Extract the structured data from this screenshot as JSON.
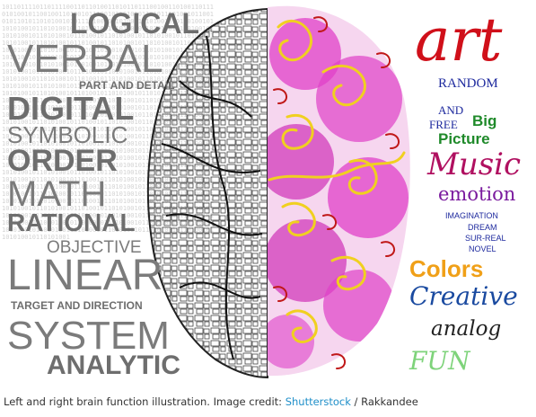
{
  "left_hemisphere": {
    "binary_text": "1011011110110111100110110100110101101110010011010011011101010010110010011010010111001011010101101011101001011001010110101101010010101110100101101001101010010101101001011010100101101010010110100101101010010110101001011010010110101001011010100101101001011010100101101010010110100101101010010110101001011010010110101001011010100101101001011010100101101010010110100101101010010110101001011010010110101001011010100101101001011010100101101010010110100101101010010110101001011010010110101001011010100101101001011010100101101010010110100101101010010110101001011010010110101001011010100101101001011010100101101010010110100101101010010110101001011010010110101001011010100101101001011010100101101010010110100101101010010110101001011010010110101001011010100101101001011010100101101010010110100101101010010110101001011010010110101001011010100101101001011010100101101010010110100101101010010110101001011010010110101001011010100101101001011010100101101010010110100101101010010110101001011010010110101001011010100101101001011010100101101010010110100101101010010110101001011010010110101001011010100101101001011010100101101010010110100101101010010110101001011010010110101001011010100101101001011010100101101010010110100101101010010110101001011010010110101001011010100101101001011010100101101010010110100101101010010110101001011010010110101001011010100101101001011010100101101010010110100101101010010110101001011010010110101001011010100101101001011010100101101010010110100101101010010110101001011010010110101001011010100101101001011010100101101010010110100101101010010110101001011010010110101001011010100101101001011010100101101010010110100101101010010110101001011010010110101001011010100101101001011010100101101010010110100101101010010110101001011010010110101001011010100101101001011010100101101010010110100101101010010110101001",
    "words": {
      "logical": "LOGICAL",
      "verbal": "VERBAL",
      "part_and_detail": "PART AND DETAIL",
      "digital": "DIGITAL",
      "symbolic": "SYMBOLIC",
      "order": "ORDER",
      "math": "MATH",
      "rational": "RATIONAL",
      "objective": "OBJECTIVE",
      "linear": "LINEAR",
      "target_and_direction": "TARGET AND DIRECTION",
      "system": "SYSTEM",
      "analytic": "ANALYTIC"
    }
  },
  "right_hemisphere": {
    "words": {
      "art": "art",
      "random": "RANDOM",
      "and": "AND",
      "free": "FREE",
      "big": "Big",
      "picture": "Picture",
      "music": "Music",
      "emotion": "emotion",
      "imagination": "IMAGINATION",
      "dream": "DREAM",
      "sur_real": "SUR-REAL",
      "novel": "NOVEL",
      "colors": "Colors",
      "creative": "Creative",
      "analog": "analog",
      "fun": "FUN"
    },
    "colors": {
      "art": "#d0101a",
      "random": "#1e2a9e",
      "and_free": "#1e2a9e",
      "big_picture": "#1f8a2a",
      "music": "#b01060",
      "emotion": "#7a1a9e",
      "small_blue": "#1e2a9e",
      "colors": "#f0a018",
      "creative": "#1a4aa0",
      "analog": "#222222",
      "fun": "#7ed37a",
      "splash": "#e040c8",
      "swirl": "#f0d020"
    }
  },
  "caption": {
    "text": "Left and right brain function illustration. Image credit: ",
    "link": "Shutterstock",
    "suffix": " / Rakkandee"
  }
}
